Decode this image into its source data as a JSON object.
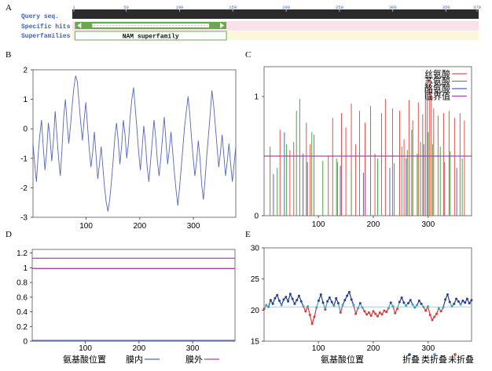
{
  "panels": {
    "A": {
      "letter": "A",
      "rows": [
        "Query seq.",
        "Specific hits",
        "Superfamilies"
      ],
      "ruler_ticks": [
        1,
        50,
        100,
        150,
        200,
        250,
        300,
        350,
        379
      ],
      "ruler_max": 379,
      "domain_label": "NAM superfamily",
      "domain_range": [
        2,
        144
      ],
      "colors": {
        "ruler": "#2b2b2b",
        "specific_row": "#f9e0ea",
        "super_row": "#fbf7dc",
        "domain": "#6aa84f",
        "label": "#3b63b5",
        "tick_text": "#3b63b5"
      }
    },
    "B": {
      "letter": "B",
      "type": "line",
      "xlim": [
        1,
        379
      ],
      "ylim": [
        -3,
        2
      ],
      "xticks": [
        100,
        200,
        300
      ],
      "yticks": [
        2,
        1,
        0,
        -1,
        -2,
        -3
      ],
      "series_color": "#5566bb",
      "values": [
        -0.5,
        -1.2,
        -1.8,
        -0.9,
        -0.2,
        0.3,
        -0.6,
        -1.4,
        -0.8,
        0.2,
        -0.3,
        -1.1,
        -0.4,
        0.6,
        -0.2,
        -1.0,
        -1.6,
        -0.7,
        0.4,
        1.0,
        0.2,
        -0.5,
        0.1,
        0.8,
        1.4,
        1.8,
        1.6,
        0.9,
        0.2,
        -0.4,
        0.3,
        0.9,
        0.1,
        -0.7,
        -1.3,
        -0.8,
        -0.1,
        -0.9,
        -1.7,
        -1.2,
        -0.6,
        -1.3,
        -2.0,
        -2.5,
        -2.8,
        -2.4,
        -1.8,
        -1.1,
        -0.3,
        0.2,
        -0.4,
        -1.2,
        -0.6,
        0.3,
        -0.2,
        -1.0,
        -0.5,
        0.4,
        1.0,
        1.4,
        0.7,
        0.0,
        -0.8,
        -1.4,
        -0.7,
        0.1,
        -0.5,
        -1.3,
        -1.8,
        -1.1,
        -0.4,
        0.3,
        -0.3,
        -1.1,
        -1.6,
        -1.0,
        -0.3,
        0.4,
        -0.4,
        -1.2,
        -0.7,
        -0.1,
        -0.8,
        -1.5,
        -2.1,
        -2.6,
        -2.0,
        -1.3,
        -0.6,
        0.1,
        0.6,
        1.1,
        0.5,
        -0.3,
        -1.0,
        -1.6,
        -1.1,
        -0.4,
        -1.0,
        -1.9,
        -2.4,
        -1.7,
        -0.9,
        -0.2,
        0.5,
        1.3,
        0.8,
        0.1,
        -0.6,
        -1.3,
        -0.8,
        -0.2,
        -0.9,
        -1.6,
        -1.1,
        -0.5,
        -1.2,
        -1.8,
        -1.2,
        -0.6
      ],
      "xlabel": "",
      "ylabel": ""
    },
    "C": {
      "letter": "C",
      "type": "bar",
      "xlim": [
        1,
        379
      ],
      "ylim": [
        0,
        1.25
      ],
      "xticks": [
        100,
        200,
        300
      ],
      "yticks": [
        0,
        1
      ],
      "threshold": 0.5,
      "legend": [
        {
          "name": "丝氨酸",
          "color": "#e8504f"
        },
        {
          "name": "苏氨酸",
          "color": "#44a844"
        },
        {
          "name": "酪氨酸",
          "color": "#4f63c0"
        },
        {
          "name": "临界值",
          "color": "#b040b0"
        }
      ],
      "series": [
        {
          "name": "丝氨酸",
          "points": [
            [
              12,
              0.58
            ],
            [
              30,
              0.72
            ],
            [
              48,
              0.55
            ],
            [
              55,
              0.62
            ],
            [
              78,
              0.78
            ],
            [
              85,
              0.6
            ],
            [
              92,
              0.68
            ],
            [
              118,
              0.5
            ],
            [
              126,
              0.82
            ],
            [
              135,
              0.45
            ],
            [
              142,
              0.86
            ],
            [
              150,
              0.74
            ],
            [
              160,
              0.94
            ],
            [
              168,
              0.6
            ],
            [
              175,
              0.88
            ],
            [
              185,
              0.78
            ],
            [
              195,
              0.92
            ],
            [
              203,
              0.52
            ],
            [
              215,
              0.86
            ],
            [
              222,
              0.98
            ],
            [
              235,
              0.9
            ],
            [
              248,
              0.88
            ],
            [
              256,
              0.64
            ],
            [
              265,
              0.97
            ],
            [
              272,
              0.8
            ],
            [
              282,
              0.95
            ],
            [
              290,
              0.85
            ],
            [
              295,
              1.08
            ],
            [
              298,
              0.98
            ],
            [
              302,
              1.15
            ],
            [
              305,
              1.05
            ],
            [
              310,
              0.9
            ],
            [
              318,
              0.84
            ],
            [
              328,
              0.86
            ],
            [
              338,
              0.88
            ],
            [
              348,
              0.82
            ],
            [
              358,
              0.86
            ],
            [
              366,
              0.8
            ]
          ]
        },
        {
          "name": "苏氨酸",
          "points": [
            [
              25,
              0.4
            ],
            [
              42,
              0.6
            ],
            [
              60,
              0.88
            ],
            [
              66,
              0.98
            ],
            [
              88,
              0.7
            ],
            [
              108,
              0.46
            ],
            [
              133,
              0.48
            ],
            [
              160,
              0.38
            ],
            [
              208,
              0.48
            ],
            [
              238,
              0.44
            ],
            [
              252,
              0.58
            ],
            [
              262,
              0.55
            ],
            [
              270,
              0.72
            ],
            [
              280,
              0.52
            ],
            [
              286,
              0.62
            ],
            [
              300,
              0.7
            ],
            [
              308,
              0.6
            ],
            [
              322,
              0.58
            ],
            [
              340,
              0.54
            ],
            [
              362,
              0.48
            ]
          ]
        },
        {
          "name": "酪氨酸",
          "points": [
            [
              18,
              0.35
            ],
            [
              38,
              0.7
            ],
            [
              72,
              0.52
            ],
            [
              80,
              0.45
            ],
            [
              140,
              0.42
            ],
            [
              182,
              0.36
            ],
            [
              230,
              0.4
            ],
            [
              260,
              0.48
            ],
            [
              292,
              0.6
            ],
            [
              330,
              0.45
            ],
            [
              352,
              0.4
            ]
          ]
        }
      ]
    },
    "D": {
      "letter": "D",
      "type": "line",
      "xlim": [
        1,
        379
      ],
      "ylim": [
        0,
        1.25
      ],
      "xticks": [
        100,
        200,
        300
      ],
      "yticks": [
        1.2,
        1,
        0.8,
        0.6,
        0.4,
        0.2,
        0
      ],
      "series": [
        {
          "name": "膜外",
          "color": "#b040b0",
          "values": [
            1.13,
            1.13
          ]
        },
        {
          "name": "膜外",
          "color": "#b040b0",
          "values": [
            0.99,
            0.99
          ]
        },
        {
          "name": "膜内",
          "color": "#4f63c0",
          "values": [
            0.01,
            0.01
          ]
        }
      ],
      "xlabel": "氨基酸位置",
      "legend": [
        {
          "name": "膜内",
          "color": "#4f63c0"
        },
        {
          "name": "膜外",
          "color": "#b040b0"
        }
      ]
    },
    "E": {
      "letter": "E",
      "type": "scatter-line",
      "xlim": [
        1,
        379
      ],
      "ylim": [
        15,
        30
      ],
      "xticks": [
        100,
        200,
        300
      ],
      "yticks": [
        30,
        25,
        20,
        15
      ],
      "reference": 20.5,
      "xlabel": "氨基酸位置",
      "legend": [
        {
          "name": "折叠",
          "color": "#2a3f8f"
        },
        {
          "name": "类折叠",
          "color": "#3ba0c8"
        },
        {
          "name": "未折叠",
          "color": "#d83a3a"
        }
      ],
      "colors": {
        "folded": "#2a3f8f",
        "semi": "#3ba0c8",
        "unfolded": "#d83a3a",
        "reference": "#9bd6e6"
      },
      "values": [
        20.2,
        20.8,
        20.5,
        21.6,
        21.0,
        21.9,
        22.4,
        21.5,
        20.8,
        21.7,
        22.1,
        21.4,
        22.6,
        21.8,
        21.0,
        21.6,
        22.3,
        21.4,
        20.6,
        19.8,
        20.6,
        19.2,
        17.8,
        18.9,
        20.4,
        21.5,
        22.5,
        21.2,
        20.1,
        21.4,
        22.0,
        21.3,
        20.7,
        21.9,
        21.1,
        19.6,
        20.8,
        21.6,
        22.3,
        22.9,
        21.7,
        20.8,
        19.4,
        20.3,
        21.1,
        20.4,
        19.8,
        19.3,
        19.6,
        19.1,
        19.8,
        19.4,
        19.0,
        19.6,
        19.3,
        19.9,
        19.7,
        20.3,
        21.2,
        20.6,
        19.5,
        20.2,
        21.3,
        22.0,
        21.2,
        20.7,
        21.1,
        21.6,
        20.9,
        20.4,
        20.8,
        21.5,
        21.0,
        20.5,
        19.9,
        20.6,
        19.2,
        18.4,
        18.9,
        19.4,
        20.3,
        19.8,
        20.4,
        21.7,
        22.5,
        21.3,
        20.6,
        21.0,
        21.8,
        21.4,
        20.9,
        21.5,
        21.2,
        21.8,
        21.1,
        21.6
      ]
    }
  }
}
